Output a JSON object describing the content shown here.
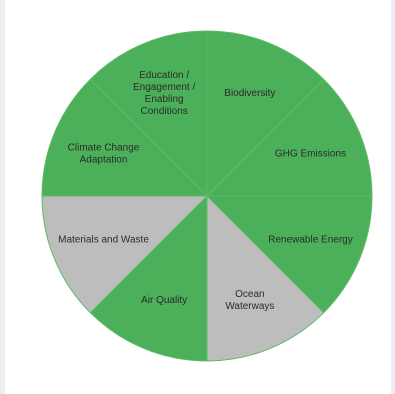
{
  "chart_data": {
    "type": "pie",
    "title": "",
    "slices": [
      {
        "label": [
          "Biodiversity"
        ],
        "value": 12.5,
        "color": "#4caf5a"
      },
      {
        "label": [
          "GHG Emissions"
        ],
        "value": 12.5,
        "color": "#4caf5a"
      },
      {
        "label": [
          "Renewable Energy"
        ],
        "value": 12.5,
        "color": "#4caf5a"
      },
      {
        "label": [
          "Ocean",
          "Waterways"
        ],
        "value": 12.5,
        "color": "#bdbdbd"
      },
      {
        "label": [
          "Air Quality"
        ],
        "value": 12.5,
        "color": "#4caf5a"
      },
      {
        "label": [
          "Materials and Waste"
        ],
        "value": 12.5,
        "color": "#bdbdbd"
      },
      {
        "label": [
          "Climate Change",
          "Adaptation"
        ],
        "value": 12.5,
        "color": "#4caf5a"
      },
      {
        "label": [
          "Education /",
          "Engagement /",
          "Enabling",
          "Conditions"
        ],
        "value": 12.5,
        "color": "#4caf5a"
      }
    ],
    "divider_color": "#5dbb68",
    "legend": "none"
  }
}
